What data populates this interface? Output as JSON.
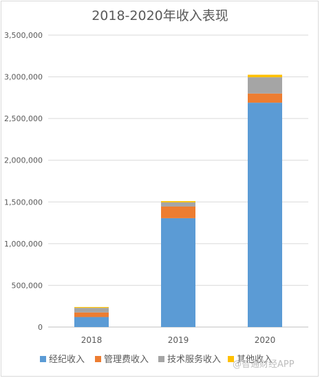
{
  "chart_data": {
    "type": "bar",
    "stacked": true,
    "title": "2018-2020年收入表现",
    "categories": [
      "2018",
      "2019",
      "2020"
    ],
    "ylim": [
      0,
      3500000
    ],
    "yticks": [
      "0",
      "500,000",
      "1,000,000",
      "1,500,000",
      "2,000,000",
      "2,500,000",
      "3,000,000",
      "3,500,000"
    ],
    "grid": true,
    "legend_position": "bottom",
    "series": [
      {
        "name": "经纪收入",
        "color": "#5b9bd5",
        "values": [
          120000,
          1305000,
          2690000
        ]
      },
      {
        "name": "管理费收入",
        "color": "#ed7d31",
        "values": [
          55000,
          140000,
          110000
        ]
      },
      {
        "name": "技术服务收入",
        "color": "#a5a5a5",
        "values": [
          55000,
          50000,
          195000
        ]
      },
      {
        "name": "其他收入",
        "color": "#ffc000",
        "values": [
          10000,
          15000,
          30000
        ]
      }
    ]
  },
  "watermark": "@智通财经APP"
}
